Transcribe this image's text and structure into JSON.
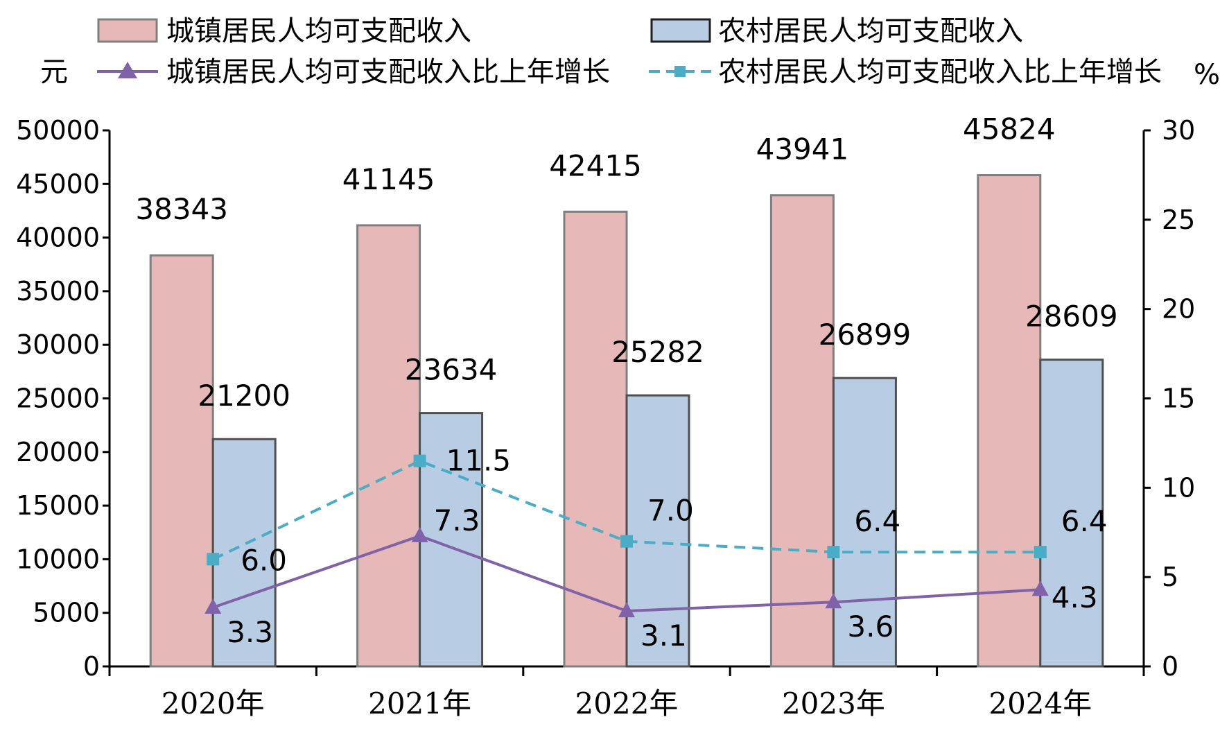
{
  "chart_data": {
    "type": "bar",
    "categories": [
      "2020年",
      "2021年",
      "2022年",
      "2023年",
      "2024年"
    ],
    "series": [
      {
        "name": "城镇居民人均可支配收入",
        "kind": "bar",
        "axis": "left",
        "color": "#e6b8b8",
        "values": [
          38343,
          41145,
          42415,
          43941,
          45824
        ]
      },
      {
        "name": "农村居民人均可支配收入",
        "kind": "bar",
        "axis": "left",
        "color": "#b8cce4",
        "values": [
          21200,
          23634,
          25282,
          26899,
          28609
        ]
      },
      {
        "name": "城镇居民人均可支配收入比上年增长",
        "kind": "line",
        "axis": "right",
        "color": "#7f62a8",
        "marker": "triangle",
        "dash": "solid",
        "values": [
          3.3,
          7.3,
          3.1,
          3.6,
          4.3
        ]
      },
      {
        "name": "农村居民人均可支配收入比上年增长",
        "kind": "line",
        "axis": "right",
        "color": "#4bacc6",
        "marker": "square",
        "dash": "dashed",
        "values": [
          6.0,
          11.5,
          7.0,
          6.4,
          6.4
        ]
      }
    ],
    "y_left": {
      "unit": "元",
      "range": [
        0,
        50000
      ],
      "ticks": [
        "0",
        "5000",
        "10000",
        "15000",
        "20000",
        "25000",
        "30000",
        "35000",
        "40000",
        "45000",
        "50000"
      ]
    },
    "y_right": {
      "unit": "%",
      "range": [
        0,
        30
      ],
      "ticks": [
        "0",
        "5",
        "10",
        "15",
        "20",
        "25",
        "30"
      ]
    },
    "bar_labels": [
      [
        "38343",
        "41145",
        "42415",
        "43941",
        "45824"
      ],
      [
        "21200",
        "23634",
        "25282",
        "26899",
        "28609"
      ]
    ],
    "line_labels": [
      [
        "3.3",
        "7.3",
        "3.1",
        "3.6",
        "4.3"
      ],
      [
        "6.0",
        "11.5",
        "7.0",
        "6.4",
        "6.4"
      ]
    ],
    "legend_position": "top",
    "grid": false
  }
}
